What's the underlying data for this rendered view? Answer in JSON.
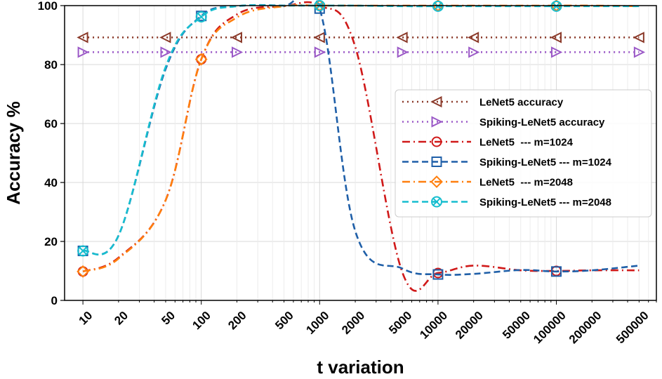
{
  "chart_data": {
    "type": "line",
    "title": "",
    "xlabel": "t variation",
    "ylabel": "Accuracy %",
    "x_scale": "log",
    "categories": [
      "10",
      "20",
      "50",
      "100",
      "200",
      "500",
      "1000",
      "2000",
      "5000",
      "10000",
      "20000",
      "50000",
      "100000",
      "200000",
      "500000"
    ],
    "x": [
      10,
      20,
      50,
      100,
      200,
      500,
      1000,
      2000,
      5000,
      10000,
      20000,
      50000,
      100000,
      200000,
      500000
    ],
    "ylim": [
      0,
      100
    ],
    "yticks": [
      "0",
      "20",
      "40",
      "60",
      "80",
      "100"
    ],
    "grid": true,
    "legend_position": "center-right",
    "series": [
      {
        "name": "LeNet5 accuracy",
        "color": "#8B3A2A",
        "linestyle": "dotted",
        "marker": "triangle-left",
        "marker_every": 2,
        "values": [
          89.2,
          89.2,
          89.2,
          89.2,
          89.2,
          89.2,
          89.2,
          89.2,
          89.2,
          89.2,
          89.2,
          89.2,
          89.2,
          89.2,
          89.2
        ]
      },
      {
        "name": "Spiking-LeNet5 accuracy",
        "color": "#9B59C7",
        "linestyle": "dotted",
        "marker": "triangle-right",
        "marker_every": 2,
        "values": [
          84.2,
          84.2,
          84.2,
          84.2,
          84.2,
          84.2,
          84.2,
          84.2,
          84.2,
          84.2,
          84.2,
          84.2,
          84.2,
          84.2,
          84.2
        ]
      },
      {
        "name": "LeNet5  --- m=1024",
        "color": "#D01919",
        "linestyle": "dashdot",
        "marker": "circle",
        "marker_every": 3,
        "values": [
          9.8,
          14.5,
          34.0,
          81.8,
          97.0,
          99.8,
          100,
          86.0,
          9.5,
          9.3,
          11.8,
          10.2,
          10.0,
          10.2,
          10.2
        ]
      },
      {
        "name": "Spiking-LeNet5 --- m=1024",
        "color": "#1F5FA8",
        "linestyle": "dashed",
        "marker": "square",
        "marker_every": 3,
        "values": [
          16.8,
          22.0,
          78.5,
          96.5,
          99.8,
          100,
          99.0,
          23.5,
          10.8,
          8.8,
          9.0,
          10.3,
          9.8,
          10.2,
          11.8
        ]
      },
      {
        "name": "LeNet5  --- m=2048",
        "color": "#FF7F0E",
        "linestyle": "dashdot",
        "marker": "diamond",
        "marker_every": 3,
        "values": [
          9.8,
          14.2,
          34.0,
          81.8,
          96.0,
          99.8,
          100,
          100,
          100,
          100,
          100,
          100,
          100,
          100,
          99.8
        ]
      },
      {
        "name": "Spiking-LeNet5 --- m=2048",
        "color": "#17BECF",
        "linestyle": "dashed",
        "marker": "x-circle",
        "marker_every": 3,
        "values": [
          16.8,
          22.0,
          79.2,
          96.2,
          99.8,
          100,
          100,
          100,
          99.8,
          99.8,
          99.8,
          99.8,
          99.8,
          99.8,
          99.8
        ]
      }
    ]
  }
}
